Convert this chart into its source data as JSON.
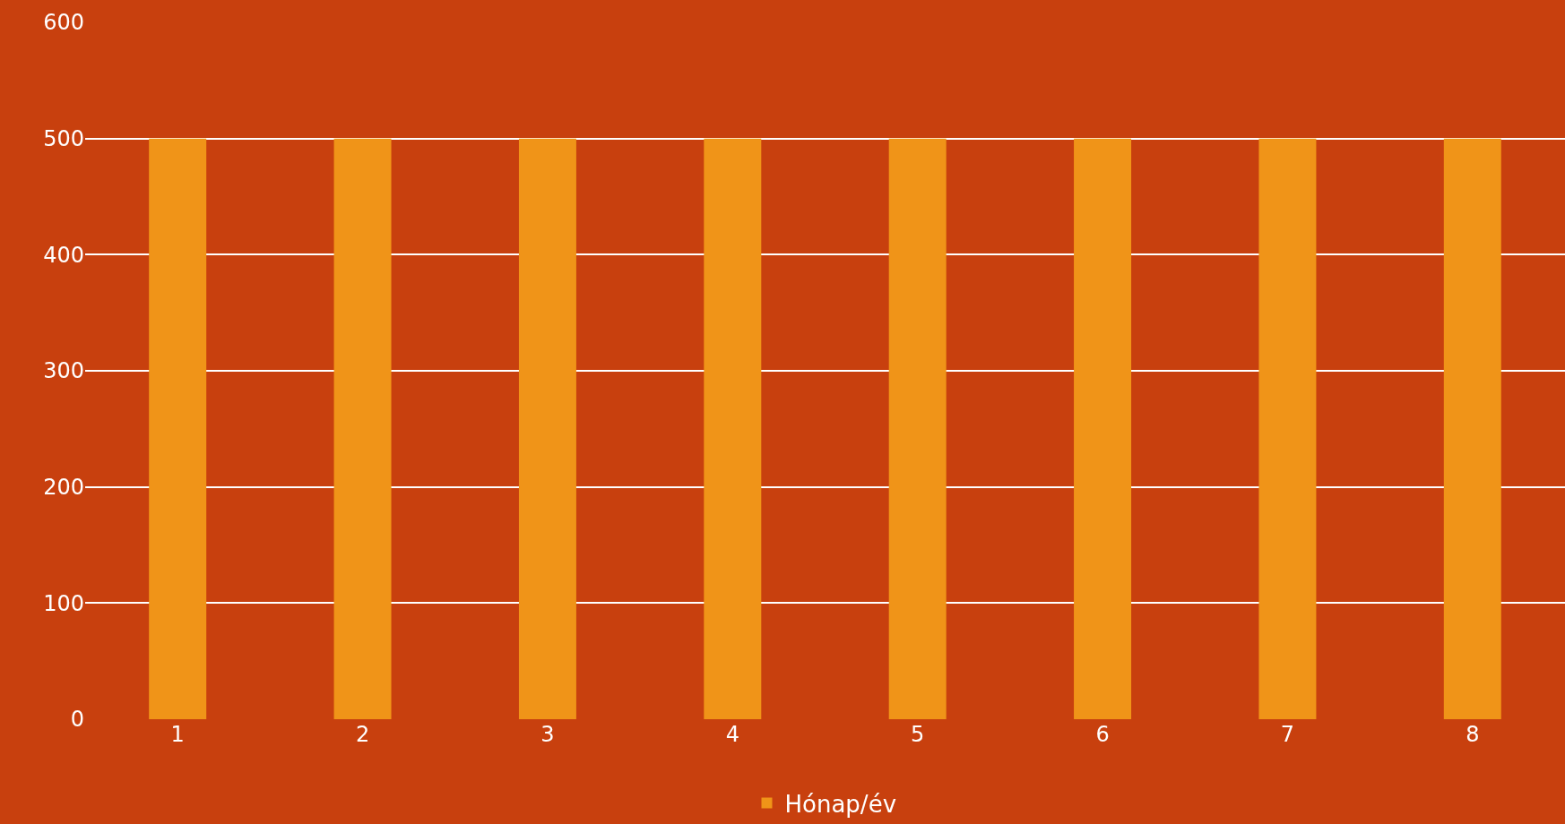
{
  "chart_data": {
    "type": "bar",
    "categories": [
      "1",
      "2",
      "3",
      "4",
      "5",
      "6",
      "7",
      "8"
    ],
    "series": [
      {
        "name": "Hónap/év",
        "color": "#f09418",
        "values": [
          500,
          500,
          500,
          500,
          500,
          500,
          500,
          500
        ]
      }
    ],
    "ylim": [
      0,
      600
    ],
    "yticks": [
      0,
      100,
      200,
      300,
      400,
      500,
      600
    ],
    "grid": "y",
    "legend": "bottom"
  }
}
